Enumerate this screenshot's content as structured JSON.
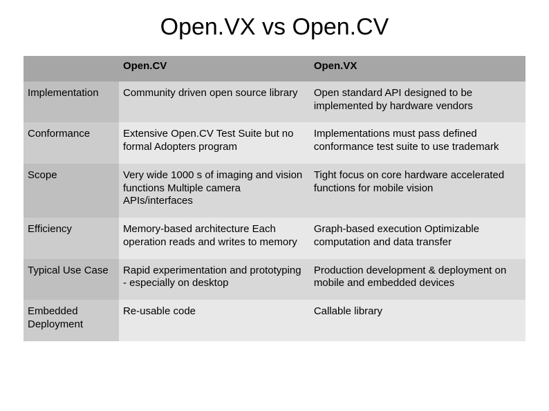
{
  "title": "Open.VX vs Open.CV",
  "table": {
    "type": "table",
    "background_color": "#ffffff",
    "header_bg": "#a6a6a6",
    "row_label_bg_dark": "#bfbfbf",
    "row_label_bg_light": "#cccccc",
    "cell_bg_dark": "#d8d8d8",
    "cell_bg_light": "#e8e8e8",
    "text_color": "#000000",
    "title_fontsize": 34,
    "cell_fontsize": 15,
    "columns": {
      "label": "",
      "col1": "Open.CV",
      "col2": "Open.VX"
    },
    "rows": [
      {
        "label": "Implementation",
        "col1": "Community driven open source library",
        "col2": "Open standard API designed to be implemented by hardware vendors"
      },
      {
        "label": "Conformance",
        "col1": "Extensive Open.CV Test Suite but no formal Adopters program",
        "col2": "Implementations must pass defined conformance test suite to use trademark"
      },
      {
        "label": "Scope",
        "col1": "Very wide 1000 s of imaging and vision functions Multiple camera APIs/interfaces",
        "col2": "Tight focus on core hardware accelerated functions for mobile vision"
      },
      {
        "label": "Efficiency",
        "col1": "Memory-based architecture Each operation reads and writes to memory",
        "col2": "Graph-based execution Optimizable computation and data transfer"
      },
      {
        "label": "Typical Use Case",
        "col1": "Rapid experimentation and prototyping - especially on desktop",
        "col2": "Production development & deployment on mobile and embedded devices"
      },
      {
        "label": "Embedded Deployment",
        "col1": "Re-usable code",
        "col2": "Callable library"
      }
    ]
  }
}
